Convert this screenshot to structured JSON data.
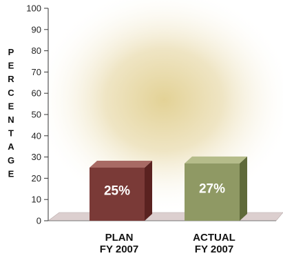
{
  "chart_data": {
    "type": "bar",
    "ylabel": "PERCENTAGE",
    "ylim": [
      0,
      100
    ],
    "yticks": [
      0,
      10,
      20,
      30,
      40,
      50,
      60,
      70,
      80,
      90,
      100
    ],
    "grid": false,
    "categories": [
      [
        "PLAN",
        "FY 2007"
      ],
      [
        "ACTUAL",
        "FY 2007"
      ]
    ],
    "values": [
      25,
      27
    ],
    "value_labels": [
      "25%",
      "27%"
    ],
    "bar_colors": [
      "#7a3a37",
      "#8f9964"
    ],
    "bar_side_colors": [
      "#5a2220",
      "#5f6a3a"
    ],
    "bar_top_colors": [
      "#a86a64",
      "#b5bc8a"
    ]
  }
}
